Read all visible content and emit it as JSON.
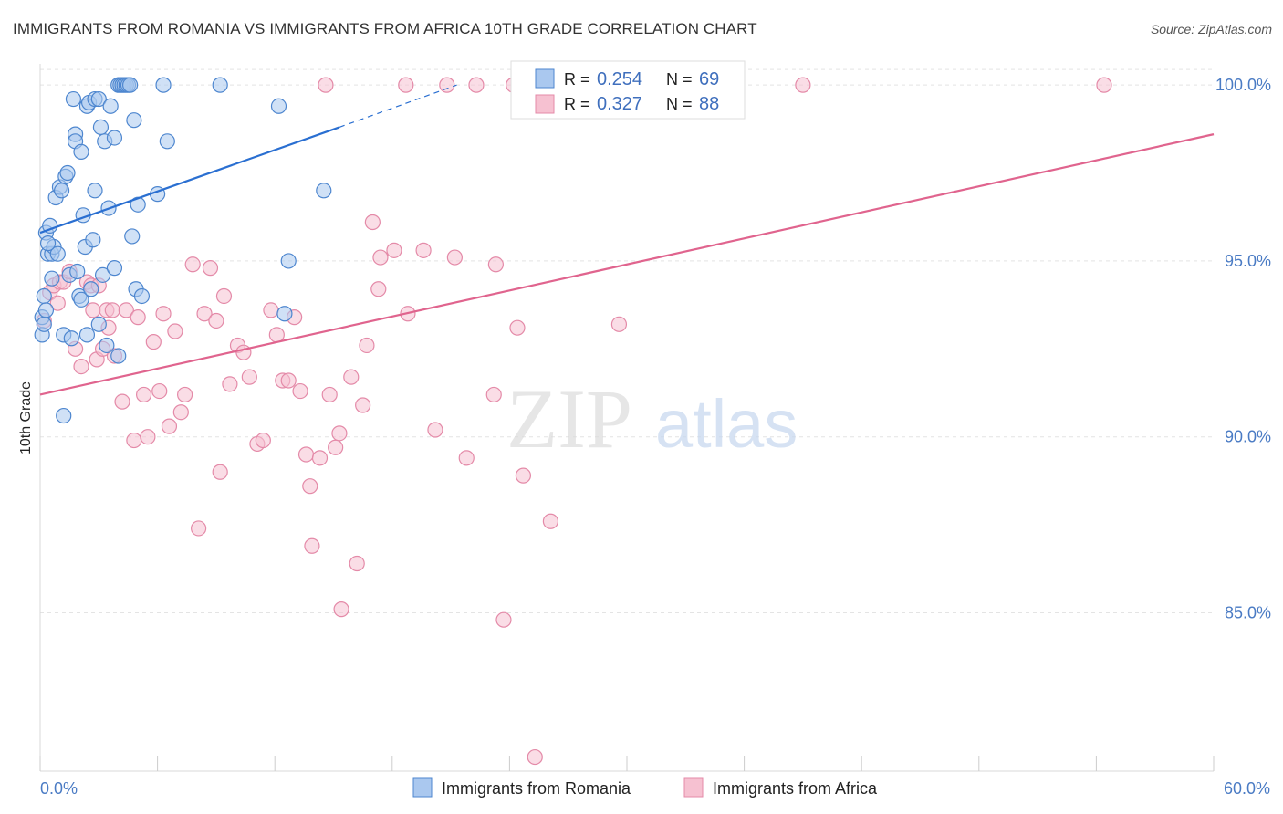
{
  "header": {
    "title": "IMMIGRANTS FROM ROMANIA VS IMMIGRANTS FROM AFRICA 10TH GRADE CORRELATION CHART",
    "source": "Source: ZipAtlas.com"
  },
  "watermark": {
    "zip": "ZIP",
    "atlas": "atlas"
  },
  "colors": {
    "romania_fill": "#aac8ef",
    "romania_stroke": "#4d86cf",
    "romania_line": "#2a6fd1",
    "africa_fill": "#f6c1d1",
    "africa_stroke": "#e48aa8",
    "africa_line": "#e0648e",
    "grid": "#e4e4e4",
    "tick_text": "#4a7bc4"
  },
  "legend": {
    "romania": {
      "r_label": "R = ",
      "r_value": "0.254",
      "n_label": "N = ",
      "n_value": "69"
    },
    "africa": {
      "r_label": "R = ",
      "r_value": "0.327",
      "n_label": "N = ",
      "n_value": "88"
    }
  },
  "chart_data": {
    "type": "scatter",
    "title": "IMMIGRANTS FROM ROMANIA VS IMMIGRANTS FROM AFRICA 10TH GRADE CORRELATION CHART",
    "xlabel": "",
    "ylabel": "10th Grade",
    "xlim": [
      0,
      60
    ],
    "ylim": [
      80.5,
      100.6
    ],
    "x_tick_labels": [
      "0.0%",
      "60.0%"
    ],
    "y_ticks": [
      85,
      90,
      95,
      100
    ],
    "y_tick_labels": [
      "85.0%",
      "90.0%",
      "95.0%",
      "100.0%"
    ],
    "grid": true,
    "legend_position": "top-center",
    "series": [
      {
        "name": "Immigrants from Romania",
        "trend": {
          "x": [
            0,
            15.3
          ],
          "y": [
            95.8,
            98.8
          ],
          "dashed_to": [
            21.3,
            100.0
          ]
        },
        "points": [
          [
            0.1,
            92.9
          ],
          [
            0.1,
            93.4
          ],
          [
            0.2,
            94.0
          ],
          [
            0.2,
            93.2
          ],
          [
            0.3,
            95.8
          ],
          [
            0.4,
            95.2
          ],
          [
            0.5,
            96.0
          ],
          [
            0.6,
            95.2
          ],
          [
            0.7,
            95.4
          ],
          [
            0.8,
            96.8
          ],
          [
            0.9,
            95.2
          ],
          [
            1.0,
            97.1
          ],
          [
            1.1,
            97.0
          ],
          [
            1.2,
            92.9
          ],
          [
            1.3,
            97.4
          ],
          [
            1.4,
            97.5
          ],
          [
            1.5,
            94.6
          ],
          [
            1.6,
            92.8
          ],
          [
            1.7,
            99.6
          ],
          [
            1.8,
            98.6
          ],
          [
            1.8,
            98.4
          ],
          [
            1.9,
            94.7
          ],
          [
            2.0,
            94.0
          ],
          [
            2.1,
            98.1
          ],
          [
            2.1,
            93.9
          ],
          [
            2.2,
            96.3
          ],
          [
            2.3,
            95.4
          ],
          [
            2.4,
            92.9
          ],
          [
            2.4,
            99.4
          ],
          [
            2.5,
            99.5
          ],
          [
            2.6,
            94.2
          ],
          [
            2.7,
            95.6
          ],
          [
            2.8,
            97.0
          ],
          [
            2.8,
            99.6
          ],
          [
            3.0,
            99.6
          ],
          [
            3.1,
            98.8
          ],
          [
            3.2,
            94.6
          ],
          [
            3.3,
            98.4
          ],
          [
            3.4,
            92.6
          ],
          [
            3.5,
            96.5
          ],
          [
            3.6,
            99.4
          ],
          [
            3.8,
            94.8
          ],
          [
            3.8,
            98.5
          ],
          [
            4.0,
            92.3
          ],
          [
            4.0,
            100.0
          ],
          [
            4.1,
            100.0
          ],
          [
            4.2,
            100.0
          ],
          [
            4.3,
            100.0
          ],
          [
            4.4,
            100.0
          ],
          [
            4.5,
            100.0
          ],
          [
            4.6,
            100.0
          ],
          [
            4.7,
            95.7
          ],
          [
            4.8,
            99.0
          ],
          [
            4.9,
            94.2
          ],
          [
            5.0,
            96.6
          ],
          [
            5.2,
            94.0
          ],
          [
            6.0,
            96.9
          ],
          [
            6.3,
            100.0
          ],
          [
            6.5,
            98.4
          ],
          [
            9.2,
            100.0
          ],
          [
            12.2,
            99.4
          ],
          [
            12.5,
            93.5
          ],
          [
            12.7,
            95.0
          ],
          [
            14.5,
            97.0
          ],
          [
            1.2,
            90.6
          ],
          [
            0.6,
            94.5
          ],
          [
            0.4,
            95.5
          ],
          [
            0.3,
            93.6
          ],
          [
            3.0,
            93.2
          ]
        ]
      },
      {
        "name": "Immigrants from Africa",
        "trend": {
          "x": [
            0,
            60
          ],
          "y": [
            91.2,
            98.6
          ]
        },
        "points": [
          [
            0.2,
            93.3
          ],
          [
            0.5,
            94.1
          ],
          [
            0.7,
            94.3
          ],
          [
            0.9,
            93.8
          ],
          [
            1.0,
            94.4
          ],
          [
            1.2,
            94.4
          ],
          [
            1.5,
            94.7
          ],
          [
            1.8,
            92.5
          ],
          [
            2.1,
            92.0
          ],
          [
            2.4,
            94.4
          ],
          [
            2.6,
            94.3
          ],
          [
            2.7,
            93.6
          ],
          [
            2.9,
            92.2
          ],
          [
            3.2,
            92.5
          ],
          [
            3.4,
            93.6
          ],
          [
            3.5,
            93.1
          ],
          [
            3.7,
            93.6
          ],
          [
            3.8,
            92.3
          ],
          [
            4.2,
            91.0
          ],
          [
            4.4,
            93.6
          ],
          [
            4.8,
            89.9
          ],
          [
            5.0,
            93.4
          ],
          [
            5.3,
            91.2
          ],
          [
            5.5,
            90.0
          ],
          [
            5.8,
            92.7
          ],
          [
            6.1,
            91.3
          ],
          [
            6.3,
            93.5
          ],
          [
            6.6,
            90.3
          ],
          [
            6.9,
            93.0
          ],
          [
            7.2,
            90.7
          ],
          [
            7.4,
            91.2
          ],
          [
            7.8,
            94.9
          ],
          [
            8.1,
            87.4
          ],
          [
            8.4,
            93.5
          ],
          [
            8.7,
            94.8
          ],
          [
            9.0,
            93.3
          ],
          [
            9.2,
            89.0
          ],
          [
            9.4,
            94.0
          ],
          [
            9.7,
            91.5
          ],
          [
            10.1,
            92.6
          ],
          [
            10.4,
            92.4
          ],
          [
            10.7,
            91.7
          ],
          [
            11.1,
            89.8
          ],
          [
            11.4,
            89.9
          ],
          [
            11.8,
            93.6
          ],
          [
            12.1,
            92.9
          ],
          [
            12.4,
            91.6
          ],
          [
            12.7,
            91.6
          ],
          [
            13.0,
            93.4
          ],
          [
            13.3,
            91.3
          ],
          [
            13.6,
            89.5
          ],
          [
            13.8,
            88.6
          ],
          [
            13.9,
            86.9
          ],
          [
            14.3,
            89.4
          ],
          [
            14.6,
            100.0
          ],
          [
            14.8,
            91.2
          ],
          [
            15.1,
            89.7
          ],
          [
            15.3,
            90.1
          ],
          [
            15.4,
            85.1
          ],
          [
            15.9,
            91.7
          ],
          [
            16.2,
            86.4
          ],
          [
            16.5,
            90.9
          ],
          [
            16.7,
            92.6
          ],
          [
            17.0,
            96.1
          ],
          [
            17.3,
            94.2
          ],
          [
            17.4,
            95.1
          ],
          [
            18.1,
            95.3
          ],
          [
            18.7,
            100.0
          ],
          [
            18.8,
            93.5
          ],
          [
            19.6,
            95.3
          ],
          [
            20.2,
            90.2
          ],
          [
            20.8,
            100.0
          ],
          [
            21.2,
            95.1
          ],
          [
            21.8,
            89.4
          ],
          [
            22.3,
            100.0
          ],
          [
            23.2,
            91.2
          ],
          [
            23.3,
            94.9
          ],
          [
            23.7,
            84.8
          ],
          [
            24.2,
            100.0
          ],
          [
            24.4,
            93.1
          ],
          [
            24.7,
            88.9
          ],
          [
            26.1,
            87.6
          ],
          [
            29.6,
            93.2
          ],
          [
            35.6,
            100.0
          ],
          [
            39.0,
            100.0
          ],
          [
            54.4,
            100.0
          ],
          [
            25.3,
            80.9
          ],
          [
            3.0,
            94.3
          ]
        ]
      }
    ]
  },
  "bottom_legend": {
    "romania": "Immigrants from Romania",
    "africa": "Immigrants from Africa"
  }
}
